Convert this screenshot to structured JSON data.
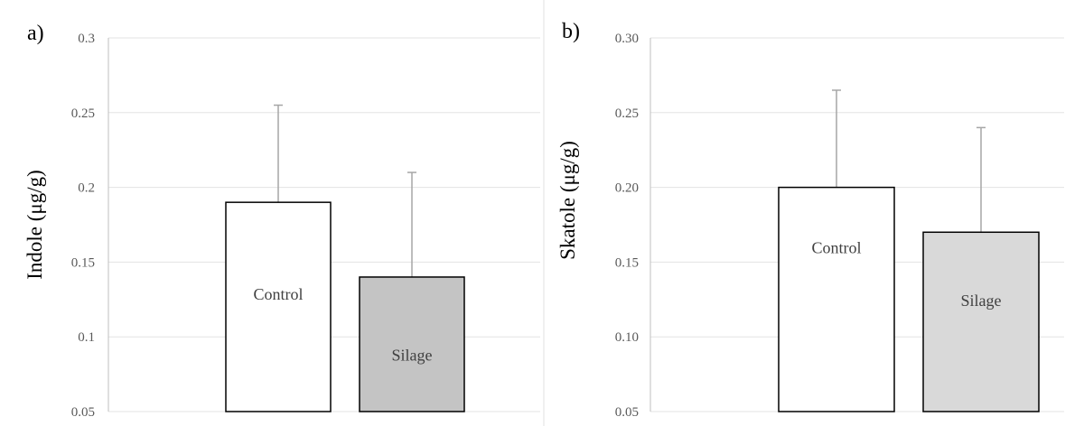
{
  "chart_data": [
    {
      "type": "bar",
      "panel_label": "a)",
      "ylabel": "Indole  (μg/g)",
      "ylim": [
        0.05,
        0.3
      ],
      "yticks": [
        "0.05",
        "0.1",
        "0.15",
        "0.2",
        "0.25",
        "0.3"
      ],
      "grid": true,
      "categories": [
        "Control",
        "Silage"
      ],
      "values": [
        0.19,
        0.14
      ],
      "error_upper": [
        0.255,
        0.21
      ],
      "colors": [
        "#ffffff",
        "#c4c4c4"
      ]
    },
    {
      "type": "bar",
      "panel_label": "b)",
      "ylabel": "Skatole (μg/g)",
      "ylim": [
        0.05,
        0.3
      ],
      "yticks": [
        "0.05",
        "0.10",
        "0.15",
        "0.20",
        "0.25",
        "0.30"
      ],
      "grid": true,
      "categories": [
        "Control",
        "Silage"
      ],
      "values": [
        0.2,
        0.17
      ],
      "error_upper": [
        0.265,
        0.24
      ],
      "colors": [
        "#ffffff",
        "#d9d9d9"
      ]
    }
  ]
}
